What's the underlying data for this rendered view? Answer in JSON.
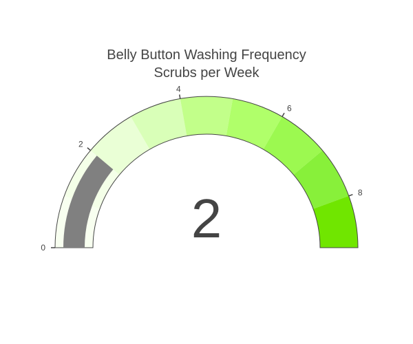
{
  "chart_data": {
    "type": "gauge",
    "title_lines": [
      "Belly Button Washing Frequency",
      "Scrubs per Week"
    ],
    "value": 2,
    "value_label": "2",
    "range": [
      0,
      9
    ],
    "ticks": [
      {
        "value": 0,
        "label": "0"
      },
      {
        "value": 2,
        "label": "2"
      },
      {
        "value": 4,
        "label": "4"
      },
      {
        "value": 6,
        "label": "6"
      },
      {
        "value": 8,
        "label": "8"
      }
    ],
    "steps": [
      {
        "range": [
          0,
          1
        ],
        "color": "#f8fff0"
      },
      {
        "range": [
          1,
          2
        ],
        "color": "#f4ffe8"
      },
      {
        "range": [
          2,
          3
        ],
        "color": "#eaffd6"
      },
      {
        "range": [
          3,
          4
        ],
        "color": "#d9ffb8"
      },
      {
        "range": [
          4,
          5
        ],
        "color": "#c2ff8a"
      },
      {
        "range": [
          5,
          6
        ],
        "color": "#b0ff6a"
      },
      {
        "range": [
          6,
          7
        ],
        "color": "#9cf950"
      },
      {
        "range": [
          7,
          8
        ],
        "color": "#88f03a"
      },
      {
        "range": [
          8,
          9
        ],
        "color": "#70e600"
      }
    ],
    "bar_color": "#808080",
    "outline_color": "#444444"
  }
}
